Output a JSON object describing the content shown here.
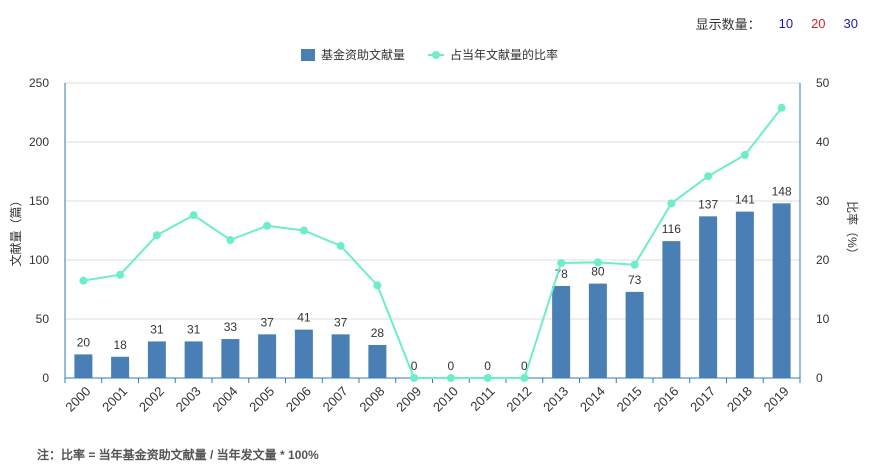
{
  "display_count": {
    "label": "显示数量：",
    "options": [
      {
        "label": "10",
        "color": "#1a1ab0"
      },
      {
        "label": "20",
        "color": "#e02020"
      },
      {
        "label": "30",
        "color": "#1a1ab0"
      }
    ]
  },
  "note": "注：比率 = 当年基金资助文献量 / 当年发文量 * 100%",
  "colors": {
    "bar": "#4a7fb5",
    "line": "#6ceeca",
    "axis": "#2e7bb5",
    "grid": "#dddddd"
  },
  "chart_data": {
    "type": "bar",
    "categories": [
      "2000",
      "2001",
      "2002",
      "2003",
      "2004",
      "2005",
      "2006",
      "2007",
      "2008",
      "2009",
      "2010",
      "2011",
      "2012",
      "2013",
      "2014",
      "2015",
      "2016",
      "2017",
      "2018",
      "2019"
    ],
    "series": [
      {
        "name": "基金资助文献量",
        "type": "bar",
        "axis": "left",
        "values": [
          20,
          18,
          31,
          31,
          33,
          37,
          41,
          37,
          28,
          0,
          0,
          0,
          0,
          78,
          80,
          73,
          116,
          137,
          141,
          148
        ]
      },
      {
        "name": "占当年文献量的比率",
        "type": "line",
        "axis": "right",
        "values": [
          16.5,
          17.5,
          24.2,
          27.6,
          23.4,
          25.8,
          25.0,
          22.4,
          15.7,
          0,
          0,
          0,
          0,
          19.5,
          19.6,
          19.2,
          29.6,
          34.2,
          37.8,
          45.8
        ]
      }
    ],
    "ylabel_left": "文献量（篇）",
    "ylabel_right": "比率（%）",
    "ylim_left": [
      0,
      250
    ],
    "ylim_right": [
      0,
      50
    ],
    "yticks_left": [
      0,
      50,
      100,
      150,
      200,
      250
    ],
    "yticks_right": [
      0,
      10,
      20,
      30,
      40,
      50
    ],
    "grid": true,
    "legend_position": "top-center"
  }
}
